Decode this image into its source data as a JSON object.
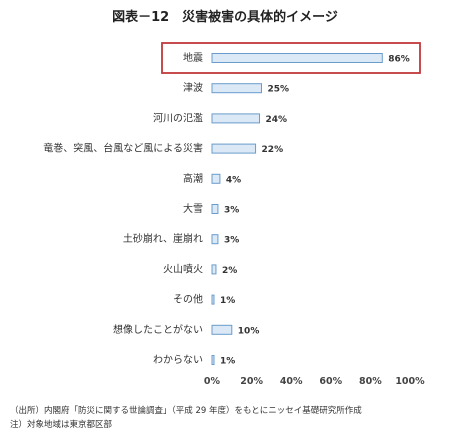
{
  "title": "図表－12　災害被害の具体的イメージ",
  "chart_data": {
    "type": "bar",
    "orientation": "horizontal",
    "categories": [
      "地震",
      "津波",
      "河川の氾濫",
      "竜巻、突風、台風など風による災害",
      "高潮",
      "大雪",
      "土砂崩れ、崖崩れ",
      "火山噴火",
      "その他",
      "想像したことがない",
      "わからない"
    ],
    "values": [
      86,
      25,
      24,
      22,
      4,
      3,
      3,
      2,
      1,
      10,
      1
    ],
    "value_labels": [
      "86%",
      "25%",
      "24%",
      "22%",
      "4%",
      "3%",
      "3%",
      "2%",
      "1%",
      "10%",
      "1%"
    ],
    "xlim": [
      0,
      100
    ],
    "x_ticks": [
      "0%",
      "20%",
      "40%",
      "60%",
      "80%",
      "100%"
    ],
    "highlighted_category": "地震",
    "grid": false,
    "colors": {
      "bar_fill": "#dbe8f6",
      "bar_stroke": "#6a9ccc",
      "highlight": "#c0393b"
    }
  },
  "notes": {
    "source": "（出所）内閣府「防災に関する世論調査」（平成 29 年度）をもとにニッセイ基礎研究所作成",
    "note": "注）対象地域は東京都区部"
  }
}
